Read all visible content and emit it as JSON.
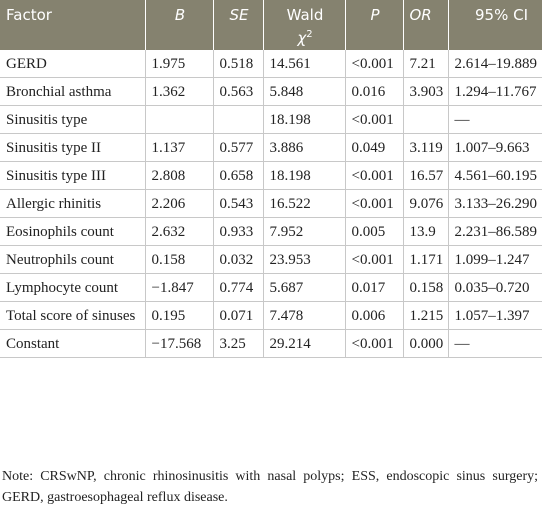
{
  "table": {
    "headers": [
      {
        "text": "Factor",
        "italic": false
      },
      {
        "text": "B",
        "italic": true
      },
      {
        "text": "SE",
        "italic": true
      },
      {
        "text": "Wald",
        "symbol": "χ",
        "sup": "2",
        "italic": false
      },
      {
        "text": "P",
        "italic": true
      },
      {
        "text": "OR",
        "italic": true
      },
      {
        "text": "95% CI",
        "italic": false
      }
    ],
    "rows": [
      [
        "GERD",
        "1.975",
        "0.518",
        "14.561",
        "<0.001",
        "7.21",
        "2.614–19.889"
      ],
      [
        "Bronchial asthma",
        "1.362",
        "0.563",
        "5.848",
        "0.016",
        "3.903",
        "1.294–11.767"
      ],
      [
        "Sinusitis type",
        null,
        null,
        "18.198",
        "<0.001",
        null,
        "—"
      ],
      [
        "Sinusitis type II",
        "1.137",
        "0.577",
        "3.886",
        "0.049",
        "3.119",
        "1.007–9.663"
      ],
      [
        "Sinusitis type III",
        "2.808",
        "0.658",
        "18.198",
        "<0.001",
        "16.57",
        "4.561–60.195"
      ],
      [
        "Allergic rhinitis",
        "2.206",
        "0.543",
        "16.522",
        "<0.001",
        "9.076",
        "3.133–26.290"
      ],
      [
        "Eosinophils count",
        "2.632",
        "0.933",
        "7.952",
        "0.005",
        "13.9",
        "2.231–86.589"
      ],
      [
        "Neutrophils count",
        "0.158",
        "0.032",
        "23.953",
        "<0.001",
        "1.171",
        "1.099–1.247"
      ],
      [
        "Lymphocyte count",
        "−1.847",
        "0.774",
        "5.687",
        "0.017",
        "0.158",
        "0.035–0.720"
      ],
      [
        "Total score of sinuses",
        "0.195",
        "0.071",
        "7.478",
        "0.006",
        "1.215",
        "1.057–1.397"
      ],
      [
        "Constant",
        "−17.568",
        "3.25",
        "29.214",
        "<0.001",
        "0.000",
        "—"
      ]
    ]
  },
  "note": "Note: CRSwNP, chronic rhinosinusitis with nasal polyps; ESS, endoscopic sinus surgery; GERD, gastroesophageal reflux disease."
}
